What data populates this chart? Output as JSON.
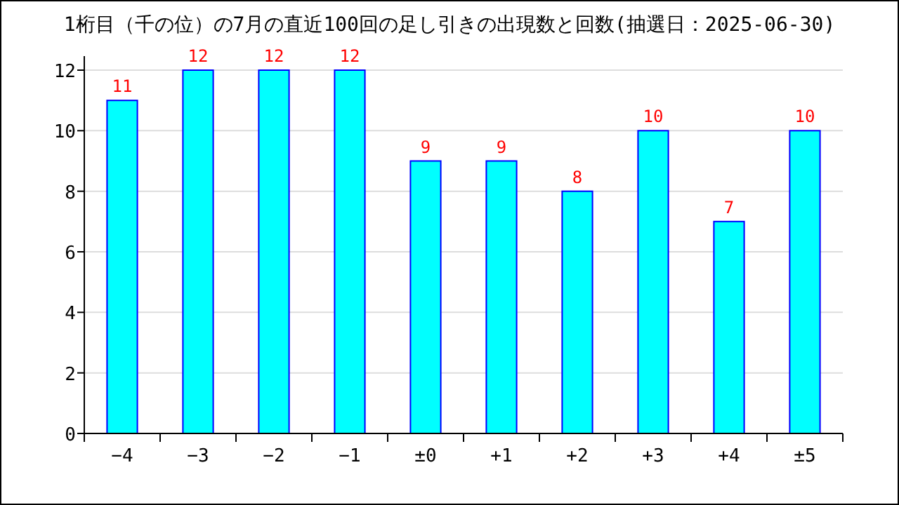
{
  "chart_data": {
    "type": "bar",
    "title": "1桁目（千の位）の7月の直近100回の足し引きの出現数と回数(抽選日：2025-06-30)",
    "categories": [
      "−4",
      "−3",
      "−2",
      "−1",
      "±0",
      "+1",
      "+2",
      "+3",
      "+4",
      "±5"
    ],
    "values": [
      11,
      12,
      12,
      12,
      9,
      9,
      8,
      10,
      7,
      10
    ],
    "color": "#00ffff",
    "ylim": [
      0,
      12
    ],
    "yticks": [
      0,
      2,
      4,
      6,
      8,
      10,
      12
    ],
    "grid": "y",
    "data_labels": true
  }
}
